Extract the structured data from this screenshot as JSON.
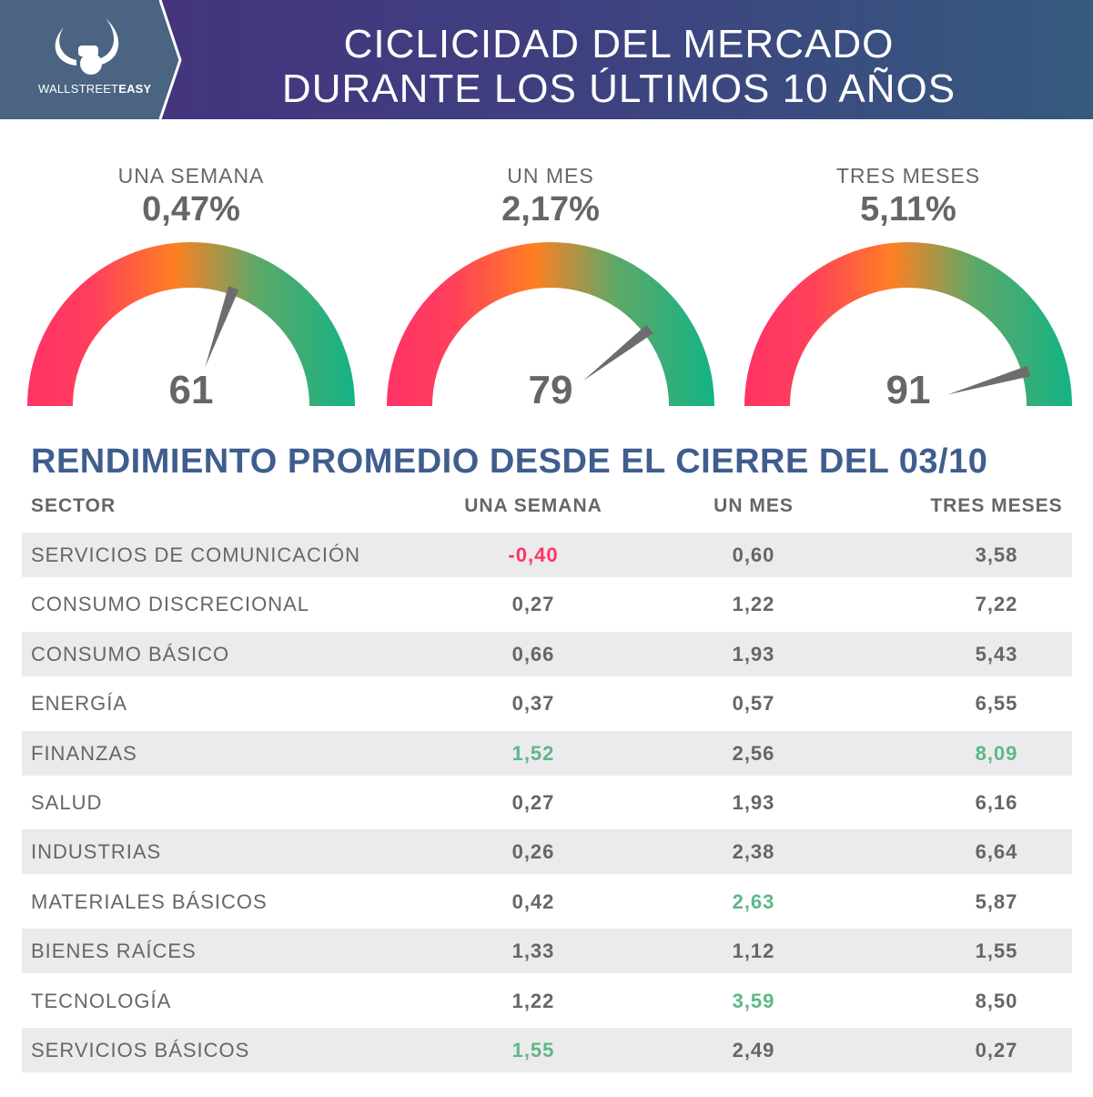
{
  "header": {
    "brand_light": "WALLSTREET",
    "brand_bold": "EASY",
    "title_line1": "CICLICIDAD DEL MERCADO",
    "title_line2": "DURANTE LOS ÚLTIMOS 10 AÑOS"
  },
  "colors": {
    "negative": "#ff3366",
    "positive_highlight": "#5cb887",
    "neutral": "#666666",
    "title": "#3f5e8f"
  },
  "chart_data": {
    "type": "table",
    "gauges": [
      {
        "label": "UNA SEMANA",
        "percent": "0,47%",
        "score": 61,
        "max": 100
      },
      {
        "label": "UN MES",
        "percent": "2,17%",
        "score": 79,
        "max": 100
      },
      {
        "label": "TRES MESES",
        "percent": "5,11%",
        "score": 91,
        "max": 100
      }
    ],
    "title": "RENDIMIENTO PROMEDIO DESDE EL CIERRE DEL 03/10",
    "columns": [
      "SECTOR",
      "UNA SEMANA",
      "UN MES",
      "TRES MESES"
    ],
    "rows": [
      {
        "sector": "SERVICIOS DE COMUNICACIÓN",
        "week": "-0,40",
        "month": "0,60",
        "three": "3,58",
        "hl": [
          "red",
          "",
          ""
        ]
      },
      {
        "sector": "CONSUMO DISCRECIONAL",
        "week": "0,27",
        "month": "1,22",
        "three": "7,22",
        "hl": [
          "",
          "",
          ""
        ]
      },
      {
        "sector": "CONSUMO BÁSICO",
        "week": "0,66",
        "month": "1,93",
        "three": "5,43",
        "hl": [
          "",
          "",
          ""
        ]
      },
      {
        "sector": "ENERGÍA",
        "week": "0,37",
        "month": "0,57",
        "three": "6,55",
        "hl": [
          "",
          "",
          ""
        ]
      },
      {
        "sector": "FINANZAS",
        "week": "1,52",
        "month": "2,56",
        "three": "8,09",
        "hl": [
          "green",
          "",
          "green"
        ]
      },
      {
        "sector": "SALUD",
        "week": "0,27",
        "month": "1,93",
        "three": "6,16",
        "hl": [
          "",
          "",
          ""
        ]
      },
      {
        "sector": "INDUSTRIAS",
        "week": "0,26",
        "month": "2,38",
        "three": "6,64",
        "hl": [
          "",
          "",
          ""
        ]
      },
      {
        "sector": "MATERIALES BÁSICOS",
        "week": "0,42",
        "month": "2,63",
        "three": "5,87",
        "hl": [
          "",
          "green",
          ""
        ]
      },
      {
        "sector": "BIENES RAÍCES",
        "week": "1,33",
        "month": "1,12",
        "three": "1,55",
        "hl": [
          "",
          "",
          ""
        ]
      },
      {
        "sector": "TECNOLOGÍA",
        "week": "1,22",
        "month": "3,59",
        "three": "8,50",
        "hl": [
          "",
          "green",
          ""
        ]
      },
      {
        "sector": "SERVICIOS BÁSICOS",
        "week": "1,55",
        "month": "2,49",
        "three": "0,27",
        "hl": [
          "green",
          "",
          ""
        ]
      }
    ]
  }
}
